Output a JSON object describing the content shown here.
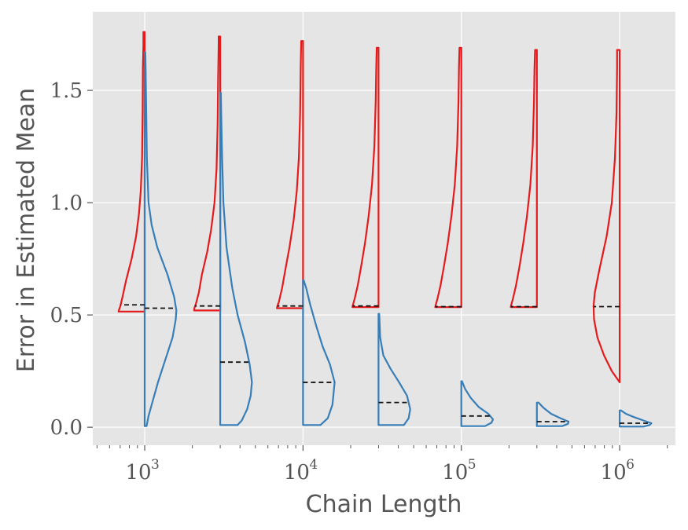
{
  "chart_data": {
    "type": "violin",
    "title": "",
    "xlabel": "Chain Length",
    "ylabel": "Error in Estimated Mean",
    "xscale": "log",
    "xlim": [
      470,
      2250000
    ],
    "ylim": [
      -0.08,
      1.85
    ],
    "grid": true,
    "x_ticks": [
      {
        "base": "10",
        "exp": "3",
        "value": 1000
      },
      {
        "base": "10",
        "exp": "4",
        "value": 10000
      },
      {
        "base": "10",
        "exp": "5",
        "value": 100000
      },
      {
        "base": "10",
        "exp": "6",
        "value": 1000000
      }
    ],
    "y_ticks": [
      {
        "label": "0.0",
        "value": 0.0
      },
      {
        "label": "0.5",
        "value": 0.5
      },
      {
        "label": "1.0",
        "value": 1.0
      },
      {
        "label": "1.5",
        "value": 1.5
      }
    ],
    "colors": {
      "red": "#e41a1c",
      "blue": "#377eb8",
      "median": "#111111",
      "background": "#e5e5e5",
      "grid": "#ffffff"
    },
    "positions": [
      1000,
      3000,
      10000,
      30000,
      100000,
      300000,
      1000000
    ],
    "series": [
      {
        "color": "#e41a1c",
        "side": "left",
        "violins": [
          {
            "ymin": 0.515,
            "ymax": 1.76,
            "median": 0.545,
            "max_half_width_decades": 0.165,
            "profile": [
              [
                0.515,
                1.0
              ],
              [
                0.52,
                0.99
              ],
              [
                0.54,
                0.93
              ],
              [
                0.58,
                0.85
              ],
              [
                0.65,
                0.72
              ],
              [
                0.75,
                0.5
              ],
              [
                0.85,
                0.33
              ],
              [
                0.95,
                0.22
              ],
              [
                1.05,
                0.15
              ],
              [
                1.2,
                0.1
              ],
              [
                1.4,
                0.08
              ],
              [
                1.6,
                0.07
              ],
              [
                1.7,
                0.05
              ],
              [
                1.76,
                0.05
              ]
            ]
          },
          {
            "ymin": 0.52,
            "ymax": 1.74,
            "median": 0.54,
            "max_half_width_decades": 0.165,
            "profile": [
              [
                0.52,
                1.0
              ],
              [
                0.53,
                0.99
              ],
              [
                0.55,
                0.93
              ],
              [
                0.6,
                0.82
              ],
              [
                0.68,
                0.7
              ],
              [
                0.78,
                0.5
              ],
              [
                0.88,
                0.35
              ],
              [
                1.0,
                0.22
              ],
              [
                1.15,
                0.14
              ],
              [
                1.35,
                0.1
              ],
              [
                1.55,
                0.08
              ],
              [
                1.7,
                0.06
              ],
              [
                1.74,
                0.06
              ]
            ]
          },
          {
            "ymin": 0.53,
            "ymax": 1.72,
            "median": 0.54,
            "max_half_width_decades": 0.165,
            "profile": [
              [
                0.53,
                1.0
              ],
              [
                0.54,
                0.98
              ],
              [
                0.56,
                0.92
              ],
              [
                0.62,
                0.8
              ],
              [
                0.7,
                0.68
              ],
              [
                0.8,
                0.52
              ],
              [
                0.92,
                0.36
              ],
              [
                1.05,
                0.24
              ],
              [
                1.2,
                0.16
              ],
              [
                1.4,
                0.11
              ],
              [
                1.6,
                0.09
              ],
              [
                1.72,
                0.07
              ]
            ]
          },
          {
            "ymin": 0.535,
            "ymax": 1.69,
            "median": 0.54,
            "max_half_width_decades": 0.165,
            "profile": [
              [
                0.535,
                1.0
              ],
              [
                0.545,
                0.98
              ],
              [
                0.57,
                0.92
              ],
              [
                0.63,
                0.8
              ],
              [
                0.72,
                0.66
              ],
              [
                0.82,
                0.52
              ],
              [
                0.94,
                0.38
              ],
              [
                1.08,
                0.25
              ],
              [
                1.25,
                0.16
              ],
              [
                1.45,
                0.11
              ],
              [
                1.6,
                0.09
              ],
              [
                1.69,
                0.07
              ]
            ]
          },
          {
            "ymin": 0.535,
            "ymax": 1.69,
            "median": 0.537,
            "max_half_width_decades": 0.165,
            "profile": [
              [
                0.535,
                1.0
              ],
              [
                0.545,
                0.98
              ],
              [
                0.57,
                0.92
              ],
              [
                0.63,
                0.8
              ],
              [
                0.72,
                0.66
              ],
              [
                0.82,
                0.52
              ],
              [
                0.94,
                0.38
              ],
              [
                1.08,
                0.25
              ],
              [
                1.25,
                0.16
              ],
              [
                1.45,
                0.11
              ],
              [
                1.6,
                0.09
              ],
              [
                1.69,
                0.07
              ]
            ]
          },
          {
            "ymin": 0.535,
            "ymax": 1.68,
            "median": 0.537,
            "max_half_width_decades": 0.165,
            "profile": [
              [
                0.535,
                1.0
              ],
              [
                0.545,
                0.98
              ],
              [
                0.57,
                0.92
              ],
              [
                0.63,
                0.8
              ],
              [
                0.72,
                0.66
              ],
              [
                0.82,
                0.52
              ],
              [
                0.94,
                0.38
              ],
              [
                1.08,
                0.25
              ],
              [
                1.25,
                0.16
              ],
              [
                1.45,
                0.11
              ],
              [
                1.6,
                0.09
              ],
              [
                1.68,
                0.07
              ]
            ]
          },
          {
            "ymin": 0.2,
            "ymax": 1.68,
            "median": 0.537,
            "max_half_width_decades": 0.165,
            "profile": [
              [
                0.2,
                0.0
              ],
              [
                0.25,
                0.3
              ],
              [
                0.32,
                0.6
              ],
              [
                0.4,
                0.85
              ],
              [
                0.48,
                0.98
              ],
              [
                0.54,
                1.0
              ],
              [
                0.6,
                0.95
              ],
              [
                0.7,
                0.78
              ],
              [
                0.85,
                0.5
              ],
              [
                1.0,
                0.3
              ],
              [
                1.2,
                0.18
              ],
              [
                1.4,
                0.12
              ],
              [
                1.6,
                0.1
              ],
              [
                1.68,
                0.1
              ]
            ]
          }
        ]
      },
      {
        "color": "#377eb8",
        "side": "right",
        "violins": [
          {
            "ymin": 0.005,
            "ymax": 1.67,
            "median": 0.53,
            "max_half_width_decades": 0.2,
            "profile": [
              [
                0.005,
                0.06
              ],
              [
                0.05,
                0.12
              ],
              [
                0.1,
                0.22
              ],
              [
                0.2,
                0.42
              ],
              [
                0.3,
                0.65
              ],
              [
                0.4,
                0.88
              ],
              [
                0.48,
                0.98
              ],
              [
                0.52,
                1.0
              ],
              [
                0.58,
                0.93
              ],
              [
                0.68,
                0.72
              ],
              [
                0.8,
                0.4
              ],
              [
                0.9,
                0.22
              ],
              [
                1.0,
                0.12
              ],
              [
                1.2,
                0.07
              ],
              [
                1.4,
                0.05
              ],
              [
                1.6,
                0.03
              ],
              [
                1.67,
                0.02
              ]
            ]
          },
          {
            "ymin": 0.01,
            "ymax": 1.49,
            "median": 0.29,
            "max_half_width_decades": 0.2,
            "profile": [
              [
                0.01,
                0.55
              ],
              [
                0.03,
                0.68
              ],
              [
                0.08,
                0.85
              ],
              [
                0.14,
                0.96
              ],
              [
                0.2,
                1.0
              ],
              [
                0.28,
                0.93
              ],
              [
                0.38,
                0.78
              ],
              [
                0.5,
                0.55
              ],
              [
                0.62,
                0.38
              ],
              [
                0.8,
                0.2
              ],
              [
                1.0,
                0.1
              ],
              [
                1.2,
                0.06
              ],
              [
                1.4,
                0.03
              ],
              [
                1.49,
                0.02
              ]
            ]
          },
          {
            "ymin": 0.01,
            "ymax": 0.655,
            "median": 0.2,
            "max_half_width_decades": 0.2,
            "profile": [
              [
                0.01,
                0.55
              ],
              [
                0.04,
                0.78
              ],
              [
                0.1,
                0.93
              ],
              [
                0.2,
                1.0
              ],
              [
                0.28,
                0.85
              ],
              [
                0.36,
                0.62
              ],
              [
                0.45,
                0.42
              ],
              [
                0.55,
                0.22
              ],
              [
                0.62,
                0.1
              ],
              [
                0.655,
                0.02
              ]
            ]
          },
          {
            "ymin": 0.01,
            "ymax": 0.505,
            "median": 0.11,
            "max_half_width_decades": 0.2,
            "profile": [
              [
                0.01,
                0.8
              ],
              [
                0.04,
                0.95
              ],
              [
                0.08,
                1.0
              ],
              [
                0.14,
                0.9
              ],
              [
                0.2,
                0.65
              ],
              [
                0.26,
                0.38
              ],
              [
                0.32,
                0.15
              ],
              [
                0.4,
                0.05
              ],
              [
                0.505,
                0.02
              ]
            ]
          },
          {
            "ymin": 0.005,
            "ymax": 0.205,
            "median": 0.05,
            "max_half_width_decades": 0.2,
            "profile": [
              [
                0.005,
                0.75
              ],
              [
                0.02,
                0.95
              ],
              [
                0.035,
                1.0
              ],
              [
                0.06,
                0.85
              ],
              [
                0.09,
                0.55
              ],
              [
                0.13,
                0.3
              ],
              [
                0.17,
                0.12
              ],
              [
                0.205,
                0.02
              ]
            ]
          },
          {
            "ymin": 0.005,
            "ymax": 0.11,
            "median": 0.025,
            "max_half_width_decades": 0.2,
            "profile": [
              [
                0.005,
                0.8
              ],
              [
                0.015,
                0.98
              ],
              [
                0.025,
                1.0
              ],
              [
                0.04,
                0.75
              ],
              [
                0.06,
                0.45
              ],
              [
                0.085,
                0.22
              ],
              [
                0.11,
                0.05
              ]
            ]
          },
          {
            "ymin": 0.003,
            "ymax": 0.075,
            "median": 0.018,
            "max_half_width_decades": 0.2,
            "profile": [
              [
                0.003,
                0.75
              ],
              [
                0.01,
                0.95
              ],
              [
                0.018,
                1.0
              ],
              [
                0.03,
                0.75
              ],
              [
                0.045,
                0.45
              ],
              [
                0.06,
                0.2
              ],
              [
                0.075,
                0.04
              ]
            ]
          }
        ]
      }
    ]
  }
}
